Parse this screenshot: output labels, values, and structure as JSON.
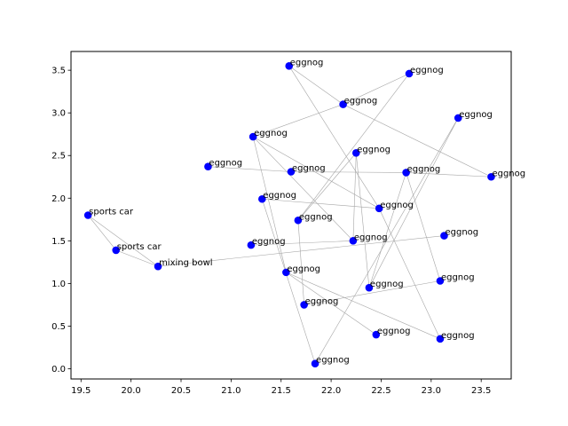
{
  "chart_data": {
    "type": "scatter",
    "title": "",
    "xlabel": "",
    "ylabel": "",
    "xlim": [
      19.4,
      23.8
    ],
    "ylim": [
      -0.12,
      3.72
    ],
    "xticks": [
      19.5,
      20.0,
      20.5,
      21.0,
      21.5,
      22.0,
      22.5,
      23.0,
      23.5
    ],
    "xtick_labels": [
      "19.5",
      "20.0",
      "20.5",
      "21.0",
      "21.5",
      "22.0",
      "22.5",
      "23.0",
      "23.5"
    ],
    "yticks": [
      0.0,
      0.5,
      1.0,
      1.5,
      2.0,
      2.5,
      3.0,
      3.5
    ],
    "ytick_labels": [
      "0.0",
      "0.5",
      "1.0",
      "1.5",
      "2.0",
      "2.5",
      "3.0",
      "3.5"
    ],
    "grid": false,
    "marker_color": "#0000ff",
    "edge_color": "#a6a6a6",
    "points": [
      {
        "x": 19.57,
        "y": 1.8,
        "label": "sports car"
      },
      {
        "x": 19.85,
        "y": 1.39,
        "label": "sports car"
      },
      {
        "x": 20.27,
        "y": 1.2,
        "label": "mixing bowl"
      },
      {
        "x": 20.77,
        "y": 2.37,
        "label": "eggnog"
      },
      {
        "x": 21.2,
        "y": 1.45,
        "label": "eggnog"
      },
      {
        "x": 21.22,
        "y": 2.72,
        "label": "eggnog"
      },
      {
        "x": 21.31,
        "y": 1.99,
        "label": "eggnog"
      },
      {
        "x": 21.55,
        "y": 1.13,
        "label": "eggnog"
      },
      {
        "x": 21.58,
        "y": 3.55,
        "label": "eggnog"
      },
      {
        "x": 21.6,
        "y": 2.31,
        "label": "eggnog"
      },
      {
        "x": 21.67,
        "y": 1.74,
        "label": "eggnog"
      },
      {
        "x": 21.73,
        "y": 0.75,
        "label": "eggnog"
      },
      {
        "x": 21.84,
        "y": 0.06,
        "label": "eggnog"
      },
      {
        "x": 22.12,
        "y": 3.1,
        "label": "eggnog"
      },
      {
        "x": 22.22,
        "y": 1.5,
        "label": "eggnog"
      },
      {
        "x": 22.25,
        "y": 2.53,
        "label": "eggnog"
      },
      {
        "x": 22.38,
        "y": 0.95,
        "label": "eggnog"
      },
      {
        "x": 22.45,
        "y": 0.4,
        "label": "eggnog"
      },
      {
        "x": 22.48,
        "y": 1.88,
        "label": "eggnog"
      },
      {
        "x": 22.75,
        "y": 2.3,
        "label": "eggnog"
      },
      {
        "x": 22.78,
        "y": 3.46,
        "label": "eggnog"
      },
      {
        "x": 23.09,
        "y": 1.03,
        "label": "eggnog"
      },
      {
        "x": 23.09,
        "y": 0.35,
        "label": "eggnog"
      },
      {
        "x": 23.13,
        "y": 1.56,
        "label": "eggnog"
      },
      {
        "x": 23.27,
        "y": 2.94,
        "label": "eggnog"
      },
      {
        "x": 23.6,
        "y": 2.25,
        "label": "eggnog"
      }
    ],
    "edges": [
      [
        0,
        1
      ],
      [
        0,
        2
      ],
      [
        1,
        2
      ],
      [
        2,
        23
      ],
      [
        3,
        9
      ],
      [
        9,
        19
      ],
      [
        19,
        25
      ],
      [
        8,
        13
      ],
      [
        13,
        20
      ],
      [
        8,
        18
      ],
      [
        13,
        25
      ],
      [
        5,
        13
      ],
      [
        5,
        7
      ],
      [
        5,
        14
      ],
      [
        5,
        18
      ],
      [
        6,
        12
      ],
      [
        6,
        18
      ],
      [
        4,
        14
      ],
      [
        14,
        15
      ],
      [
        15,
        16
      ],
      [
        15,
        10
      ],
      [
        10,
        20
      ],
      [
        10,
        11
      ],
      [
        7,
        17
      ],
      [
        7,
        22
      ],
      [
        11,
        21
      ],
      [
        16,
        19
      ],
      [
        19,
        21
      ],
      [
        18,
        22
      ],
      [
        12,
        24
      ],
      [
        24,
        16
      ]
    ]
  }
}
